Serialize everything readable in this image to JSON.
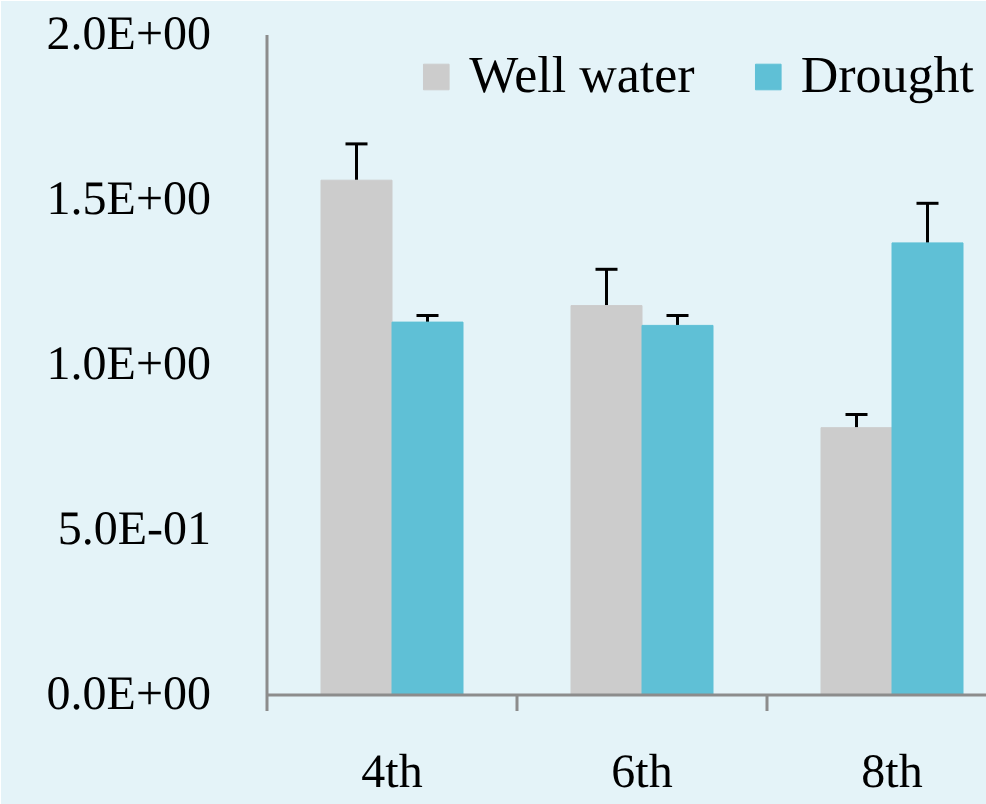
{
  "chart_data": {
    "type": "bar",
    "categories": [
      "4th",
      "6th",
      "8th"
    ],
    "series": [
      {
        "name": "Well water",
        "color": "#cccccc",
        "values": [
          1.56,
          1.18,
          0.81
        ],
        "errors": [
          [
            1.56,
            1.67
          ],
          [
            1.18,
            1.29
          ],
          [
            0.81,
            0.85
          ]
        ]
      },
      {
        "name": "Drought",
        "color": "#5fc0d6",
        "values": [
          1.13,
          1.12,
          1.37
        ],
        "errors": [
          [
            1.13,
            1.15
          ],
          [
            1.12,
            1.15
          ],
          [
            1.37,
            1.49
          ]
        ]
      }
    ],
    "ylim": [
      0,
      2
    ],
    "yticks": [
      {
        "value": 0,
        "label": "0.0E+00"
      },
      {
        "value": 0.5,
        "label": "5.0E-01"
      },
      {
        "value": 1,
        "label": "1.0E+00"
      },
      {
        "value": 1.5,
        "label": "1.5E+00"
      },
      {
        "value": 2,
        "label": "2.0E+00"
      }
    ],
    "grid": false,
    "legend": "top right"
  }
}
